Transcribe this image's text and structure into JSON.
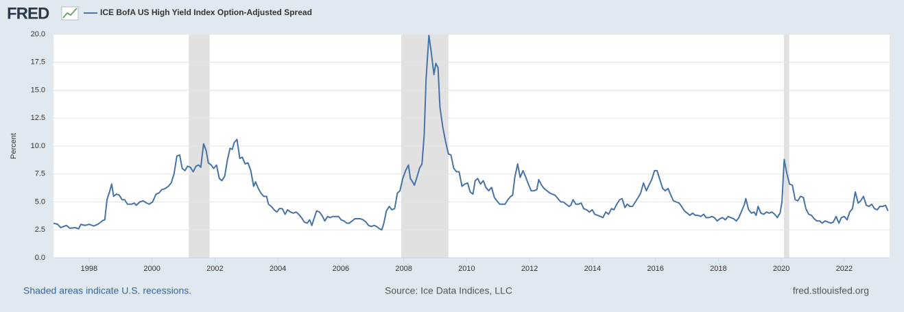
{
  "brand": "FRED",
  "chart_data": {
    "type": "line",
    "ylabel": "Percent",
    "xlim": [
      1996.87,
      2023.44
    ],
    "ylim": [
      0,
      20
    ],
    "xticks": [
      1998,
      2000,
      2002,
      2004,
      2006,
      2008,
      2010,
      2012,
      2014,
      2016,
      2018,
      2020,
      2022
    ],
    "yticks": [
      {
        "value": 0,
        "label": "0.0"
      },
      2.5,
      {
        "value": 5,
        "label": "5.0"
      },
      7.5,
      {
        "value": 10,
        "label": "10.0"
      },
      12.5,
      {
        "value": 15,
        "label": "15.0"
      },
      17.5,
      {
        "value": 20,
        "label": "20.0"
      }
    ],
    "grid": true,
    "recessions": [
      [
        2001.17,
        2001.83
      ],
      [
        2007.92,
        2009.42
      ],
      [
        2020.08,
        2020.25
      ]
    ],
    "recession_color": "#e1e1e1",
    "series": [
      {
        "name": "ICE BofA US High Yield Index Option-Adjusted Spread",
        "color": "#4572a7",
        "x": [
          1996.87,
          1997.0,
          1997.1,
          1997.28,
          1997.39,
          1997.56,
          1997.67,
          1997.74,
          1997.87,
          1998.0,
          1998.15,
          1998.28,
          1998.44,
          1998.5,
          1998.57,
          1998.65,
          1998.72,
          1998.78,
          1998.87,
          1998.96,
          1999.05,
          1999.13,
          1999.22,
          1999.35,
          1999.44,
          1999.5,
          1999.61,
          1999.72,
          1999.83,
          1999.91,
          2000.02,
          2000.13,
          2000.22,
          2000.31,
          2000.42,
          2000.52,
          2000.61,
          2000.7,
          2000.79,
          2000.88,
          2000.96,
          2001.05,
          2001.13,
          2001.22,
          2001.31,
          2001.4,
          2001.48,
          2001.55,
          2001.64,
          2001.72,
          2001.79,
          2001.88,
          2001.96,
          2002.05,
          2002.14,
          2002.22,
          2002.31,
          2002.4,
          2002.48,
          2002.55,
          2002.61,
          2002.7,
          2002.79,
          2002.87,
          2002.96,
          2003.05,
          2003.14,
          2003.23,
          2003.29,
          2003.38,
          2003.46,
          2003.55,
          2003.64,
          2003.7,
          2003.79,
          2003.88,
          2003.97,
          2004.05,
          2004.14,
          2004.23,
          2004.31,
          2004.4,
          2004.49,
          2004.58,
          2004.66,
          2004.75,
          2004.84,
          2004.93,
          2005.01,
          2005.08,
          2005.16,
          2005.23,
          2005.32,
          2005.4,
          2005.49,
          2005.58,
          2005.66,
          2005.75,
          2005.84,
          2005.93,
          2006.01,
          2006.1,
          2006.19,
          2006.27,
          2006.36,
          2006.45,
          2006.53,
          2006.62,
          2006.71,
          2006.8,
          2006.88,
          2006.97,
          2007.06,
          2007.14,
          2007.23,
          2007.3,
          2007.36,
          2007.45,
          2007.54,
          2007.62,
          2007.71,
          2007.8,
          2007.88,
          2007.97,
          2008.06,
          2008.15,
          2008.21,
          2008.28,
          2008.34,
          2008.43,
          2008.5,
          2008.58,
          2008.65,
          2008.71,
          2008.8,
          2008.87,
          2008.96,
          2009.02,
          2009.09,
          2009.15,
          2009.24,
          2009.33,
          2009.42,
          2009.5,
          2009.59,
          2009.68,
          2009.76,
          2009.85,
          2009.94,
          2010.03,
          2010.11,
          2010.2,
          2010.27,
          2010.35,
          2010.44,
          2010.53,
          2010.61,
          2010.7,
          2010.79,
          2010.88,
          2010.96,
          2011.05,
          2011.14,
          2011.22,
          2011.31,
          2011.4,
          2011.46,
          2011.53,
          2011.62,
          2011.7,
          2011.79,
          2011.88,
          2011.96,
          2012.05,
          2012.14,
          2012.23,
          2012.29,
          2012.38,
          2012.46,
          2012.55,
          2012.64,
          2012.72,
          2012.81,
          2012.9,
          2012.99,
          2013.07,
          2013.16,
          2013.25,
          2013.31,
          2013.38,
          2013.47,
          2013.55,
          2013.64,
          2013.72,
          2013.81,
          2013.9,
          2013.99,
          2014.07,
          2014.16,
          2014.25,
          2014.33,
          2014.42,
          2014.51,
          2014.6,
          2014.68,
          2014.77,
          2014.86,
          2014.94,
          2015.03,
          2015.1,
          2015.19,
          2015.27,
          2015.36,
          2015.45,
          2015.53,
          2015.62,
          2015.71,
          2015.79,
          2015.88,
          2015.97,
          2016.05,
          2016.14,
          2016.23,
          2016.31,
          2016.4,
          2016.49,
          2016.57,
          2016.66,
          2016.75,
          2016.83,
          2016.92,
          2017.01,
          2017.09,
          2017.18,
          2017.27,
          2017.35,
          2017.44,
          2017.53,
          2017.61,
          2017.7,
          2017.79,
          2017.87,
          2017.96,
          2018.05,
          2018.13,
          2018.22,
          2018.31,
          2018.39,
          2018.48,
          2018.57,
          2018.65,
          2018.74,
          2018.83,
          2018.87,
          2018.96,
          2019.05,
          2019.13,
          2019.2,
          2019.26,
          2019.35,
          2019.44,
          2019.53,
          2019.61,
          2019.7,
          2019.79,
          2019.87,
          2019.96,
          2020.02,
          2020.09,
          2020.17,
          2020.26,
          2020.35,
          2020.44,
          2020.52,
          2020.61,
          2020.7,
          2020.78,
          2020.87,
          2020.96,
          2021.04,
          2021.13,
          2021.22,
          2021.3,
          2021.39,
          2021.48,
          2021.57,
          2021.65,
          2021.74,
          2021.83,
          2021.91,
          2022.0,
          2022.09,
          2022.17,
          2022.26,
          2022.35,
          2022.44,
          2022.52,
          2022.61,
          2022.7,
          2022.79,
          2022.87,
          2022.96,
          2023.05,
          2023.13,
          2023.22,
          2023.31,
          2023.39
        ],
        "values": [
          3.1,
          3.0,
          2.7,
          2.9,
          2.65,
          2.7,
          2.6,
          3.0,
          2.9,
          3.0,
          2.85,
          3.0,
          3.35,
          3.4,
          5.2,
          5.9,
          6.6,
          5.5,
          5.7,
          5.6,
          5.2,
          5.2,
          4.8,
          4.8,
          4.9,
          4.7,
          5.0,
          5.1,
          4.9,
          4.8,
          5.0,
          5.7,
          5.8,
          6.1,
          6.2,
          6.4,
          6.7,
          7.5,
          9.1,
          9.2,
          8.0,
          7.8,
          8.2,
          8.1,
          7.7,
          8.2,
          8.3,
          8.1,
          10.2,
          9.6,
          8.5,
          8.3,
          8.0,
          8.3,
          7.1,
          6.9,
          7.3,
          8.8,
          9.8,
          9.7,
          10.3,
          10.6,
          8.9,
          9.0,
          8.4,
          8.5,
          7.8,
          6.4,
          6.8,
          6.2,
          5.8,
          5.5,
          5.5,
          4.8,
          4.6,
          4.3,
          4.1,
          4.4,
          4.4,
          3.9,
          4.3,
          4.1,
          4.0,
          4.1,
          3.9,
          3.6,
          3.2,
          3.1,
          3.4,
          2.9,
          3.6,
          4.2,
          4.1,
          3.8,
          3.3,
          3.7,
          3.6,
          3.7,
          3.7,
          3.7,
          3.4,
          3.3,
          3.1,
          3.1,
          3.3,
          3.5,
          3.5,
          3.5,
          3.4,
          3.2,
          2.9,
          2.8,
          2.9,
          2.8,
          2.6,
          2.5,
          3.0,
          4.2,
          4.6,
          4.3,
          4.4,
          5.8,
          6.0,
          7.1,
          7.8,
          8.3,
          7.1,
          6.8,
          6.5,
          7.3,
          8.0,
          8.4,
          11.0,
          16.0,
          19.9,
          18.5,
          16.4,
          17.4,
          17.0,
          13.5,
          11.7,
          10.4,
          9.3,
          9.2,
          8.0,
          7.7,
          7.7,
          6.4,
          6.6,
          6.7,
          5.9,
          5.7,
          6.9,
          7.1,
          6.6,
          6.9,
          6.3,
          6.0,
          6.3,
          5.4,
          5.1,
          4.8,
          4.8,
          4.8,
          5.2,
          5.5,
          5.6,
          7.2,
          8.4,
          7.2,
          7.8,
          7.2,
          6.6,
          6.0,
          6.0,
          6.1,
          7.0,
          6.5,
          6.2,
          6.0,
          5.8,
          5.7,
          5.6,
          5.3,
          5.0,
          5.0,
          4.8,
          4.6,
          4.7,
          5.2,
          4.8,
          4.8,
          4.9,
          4.4,
          4.3,
          4.1,
          4.3,
          3.9,
          3.8,
          3.7,
          3.6,
          4.1,
          3.9,
          4.4,
          4.3,
          4.8,
          5.2,
          5.3,
          4.5,
          4.8,
          4.6,
          4.6,
          5.0,
          5.4,
          5.8,
          6.7,
          6.0,
          6.5,
          7.0,
          7.8,
          7.8,
          7.0,
          6.2,
          6.0,
          6.2,
          5.6,
          5.1,
          5.0,
          4.9,
          4.6,
          4.2,
          4.0,
          3.8,
          4.0,
          3.8,
          3.8,
          3.7,
          3.9,
          3.6,
          3.6,
          3.7,
          3.6,
          3.3,
          3.5,
          3.6,
          3.4,
          3.7,
          3.6,
          3.5,
          3.3,
          3.6,
          4.2,
          4.8,
          5.3,
          4.3,
          4.0,
          4.1,
          3.8,
          4.6,
          4.0,
          3.9,
          4.1,
          4.0,
          4.1,
          3.9,
          3.6,
          4.0,
          5.0,
          8.8,
          7.6,
          6.6,
          6.5,
          5.2,
          5.1,
          5.5,
          5.4,
          4.4,
          3.9,
          3.8,
          3.5,
          3.3,
          3.3,
          3.1,
          3.3,
          3.2,
          3.1,
          3.2,
          3.7,
          3.1,
          3.6,
          3.7,
          3.4,
          4.1,
          4.4,
          5.9,
          4.9,
          5.1,
          5.5,
          4.7,
          4.6,
          4.8,
          4.4,
          4.3,
          4.6,
          4.6,
          4.7,
          4.2
        ]
      }
    ]
  },
  "footer": {
    "note": "Shaded areas indicate U.S. recessions.",
    "source": "Source: Ice Data Indices, LLC",
    "site": "fred.stlouisfed.org"
  }
}
